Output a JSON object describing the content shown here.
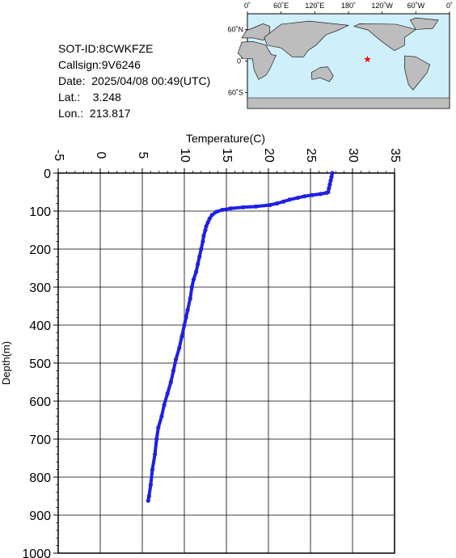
{
  "info": {
    "sot_id": "SOT-ID:8CWKFZE",
    "callsign": "Callsign:9V6246",
    "date": "Date:  2025/04/08 00:49(UTC)",
    "lat": "Lat.:    3.248",
    "lon": "Lon.:  213.817"
  },
  "map": {
    "lon_labels": [
      "0˚",
      "60˚E",
      "120˚E",
      "180˚",
      "120˚W",
      "60˚W",
      "0˚"
    ],
    "lat_labels": [
      "60˚N",
      "0˚",
      "60˚S"
    ],
    "marker_lat": 3.248,
    "marker_lon": 213.817,
    "marker_color": "#ff0000",
    "land_color": "#bdbdbd",
    "ocean_color": "#cfeffc"
  },
  "chart_data": {
    "type": "scatter",
    "xlabel": "Temperature(C)",
    "ylabel": "Depth(m)",
    "xlim": [
      -5,
      35
    ],
    "ylim": [
      0,
      1000
    ],
    "y_inverted": true,
    "x_ticks": [
      "-5",
      "0",
      "5",
      "10",
      "15",
      "20",
      "25",
      "30",
      "35"
    ],
    "y_ticks": [
      "0",
      "100",
      "200",
      "300",
      "400",
      "500",
      "600",
      "700",
      "800",
      "900",
      "1000"
    ],
    "grid": true,
    "color": "#1f1fe6",
    "series": [
      {
        "points": [
          [
            27.6,
            0
          ],
          [
            27.5,
            10
          ],
          [
            27.4,
            20
          ],
          [
            27.3,
            30
          ],
          [
            27.2,
            40
          ],
          [
            27.1,
            50
          ],
          [
            26.9,
            52
          ],
          [
            26.2,
            55
          ],
          [
            25.2,
            58
          ],
          [
            24.3,
            61
          ],
          [
            23.5,
            65
          ],
          [
            22.5,
            70
          ],
          [
            21.8,
            75
          ],
          [
            21.0,
            80
          ],
          [
            20.2,
            84
          ],
          [
            18.5,
            88
          ],
          [
            17.0,
            90
          ],
          [
            15.5,
            93
          ],
          [
            14.5,
            97
          ],
          [
            13.8,
            102
          ],
          [
            13.3,
            110
          ],
          [
            13.0,
            120
          ],
          [
            12.8,
            130
          ],
          [
            12.6,
            140
          ],
          [
            12.5,
            150
          ],
          [
            12.3,
            165
          ],
          [
            12.2,
            180
          ],
          [
            12.0,
            200
          ],
          [
            11.8,
            220
          ],
          [
            11.6,
            240
          ],
          [
            11.4,
            260
          ],
          [
            11.1,
            280
          ],
          [
            10.9,
            300
          ],
          [
            10.7,
            330
          ],
          [
            10.4,
            360
          ],
          [
            10.2,
            380
          ],
          [
            10.0,
            400
          ],
          [
            9.7,
            430
          ],
          [
            9.4,
            460
          ],
          [
            9.0,
            490
          ],
          [
            8.7,
            520
          ],
          [
            8.4,
            550
          ],
          [
            8.0,
            580
          ],
          [
            7.6,
            610
          ],
          [
            7.3,
            640
          ],
          [
            6.9,
            670
          ],
          [
            6.7,
            700
          ],
          [
            6.5,
            740
          ],
          [
            6.2,
            780
          ],
          [
            6.0,
            820
          ],
          [
            5.8,
            850
          ],
          [
            5.7,
            862
          ]
        ]
      }
    ]
  }
}
